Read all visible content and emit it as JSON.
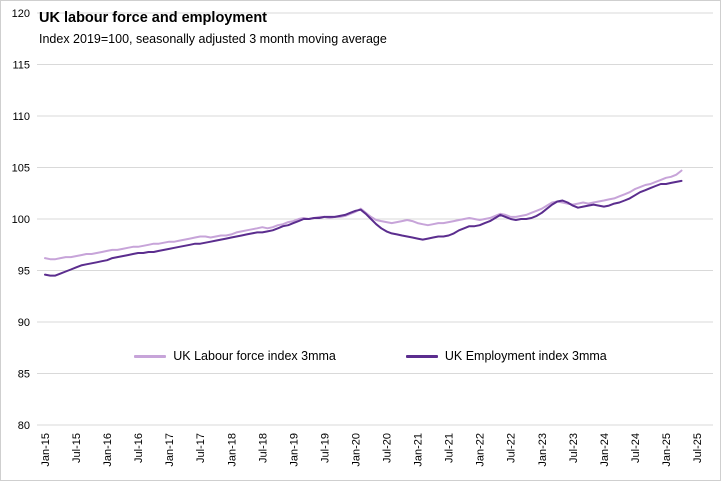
{
  "chart_data": {
    "type": "line",
    "title": "UK labour force and employment",
    "subtitle": "Index 2019=100, seasonally adjusted 3 month moving average",
    "ylim": [
      80,
      120
    ],
    "y_ticks": [
      80,
      85,
      90,
      95,
      100,
      105,
      110,
      115,
      120
    ],
    "grid": true,
    "legend_position": "inside-bottom",
    "x_unit": "month",
    "x_tick_every": 6,
    "x_tick_labels": [
      "Jan-15",
      "Jul-15",
      "Jan-16",
      "Jul-16",
      "Jan-17",
      "Jul-17",
      "Jan-18",
      "Jul-18",
      "Jan-19",
      "Jul-19",
      "Jan-20",
      "Jul-20",
      "Jan-21",
      "Jul-21",
      "Jan-22",
      "Jul-22",
      "Jan-23",
      "Jul-23",
      "Jan-24",
      "Jul-24",
      "Jan-25",
      "Jul-25"
    ],
    "series": [
      {
        "name": "UK Labour force index 3mma",
        "color": "#c7a4d9",
        "values": [
          96.2,
          96.1,
          96.1,
          96.2,
          96.3,
          96.3,
          96.4,
          96.5,
          96.6,
          96.6,
          96.7,
          96.8,
          96.9,
          97.0,
          97.0,
          97.1,
          97.2,
          97.3,
          97.3,
          97.4,
          97.5,
          97.6,
          97.6,
          97.7,
          97.8,
          97.8,
          97.9,
          98.0,
          98.1,
          98.2,
          98.3,
          98.3,
          98.2,
          98.3,
          98.4,
          98.4,
          98.5,
          98.7,
          98.8,
          98.9,
          99.0,
          99.1,
          99.2,
          99.1,
          99.2,
          99.4,
          99.5,
          99.7,
          99.8,
          100.0,
          100.1,
          100.0,
          100.1,
          100.2,
          100.2,
          100.1,
          100.2,
          100.2,
          100.3,
          100.5,
          100.7,
          101.0,
          100.6,
          100.2,
          99.9,
          99.8,
          99.7,
          99.6,
          99.7,
          99.8,
          99.9,
          99.8,
          99.6,
          99.5,
          99.4,
          99.5,
          99.6,
          99.6,
          99.7,
          99.8,
          99.9,
          100.0,
          100.1,
          100.0,
          99.9,
          100.0,
          100.1,
          100.3,
          100.5,
          100.4,
          100.2,
          100.2,
          100.3,
          100.4,
          100.6,
          100.8,
          101.0,
          101.3,
          101.6,
          101.7,
          101.6,
          101.5,
          101.4,
          101.5,
          101.6,
          101.5,
          101.6,
          101.7,
          101.8,
          101.9,
          102.0,
          102.2,
          102.4,
          102.6,
          102.9,
          103.1,
          103.3,
          103.4,
          103.6,
          103.8,
          104.0,
          104.1,
          104.3,
          104.7
        ]
      },
      {
        "name": "UK Employment index 3mma",
        "color": "#5b2d8e",
        "values": [
          94.6,
          94.5,
          94.5,
          94.7,
          94.9,
          95.1,
          95.3,
          95.5,
          95.6,
          95.7,
          95.8,
          95.9,
          96.0,
          96.2,
          96.3,
          96.4,
          96.5,
          96.6,
          96.7,
          96.7,
          96.8,
          96.8,
          96.9,
          97.0,
          97.1,
          97.2,
          97.3,
          97.4,
          97.5,
          97.6,
          97.6,
          97.7,
          97.8,
          97.9,
          98.0,
          98.1,
          98.2,
          98.3,
          98.4,
          98.5,
          98.6,
          98.7,
          98.7,
          98.8,
          98.9,
          99.1,
          99.3,
          99.4,
          99.6,
          99.8,
          100.0,
          100.0,
          100.1,
          100.1,
          100.2,
          100.2,
          100.2,
          100.3,
          100.4,
          100.6,
          100.8,
          100.9,
          100.5,
          100.0,
          99.5,
          99.1,
          98.8,
          98.6,
          98.5,
          98.4,
          98.3,
          98.2,
          98.1,
          98.0,
          98.1,
          98.2,
          98.3,
          98.3,
          98.4,
          98.6,
          98.9,
          99.1,
          99.3,
          99.3,
          99.4,
          99.6,
          99.8,
          100.1,
          100.4,
          100.2,
          100.0,
          99.9,
          100.0,
          100.0,
          100.1,
          100.3,
          100.6,
          101.0,
          101.4,
          101.7,
          101.8,
          101.6,
          101.3,
          101.1,
          101.2,
          101.3,
          101.4,
          101.3,
          101.2,
          101.3,
          101.5,
          101.6,
          101.8,
          102.0,
          102.3,
          102.6,
          102.8,
          103.0,
          103.2,
          103.4,
          103.4,
          103.5,
          103.6,
          103.7
        ]
      }
    ]
  }
}
